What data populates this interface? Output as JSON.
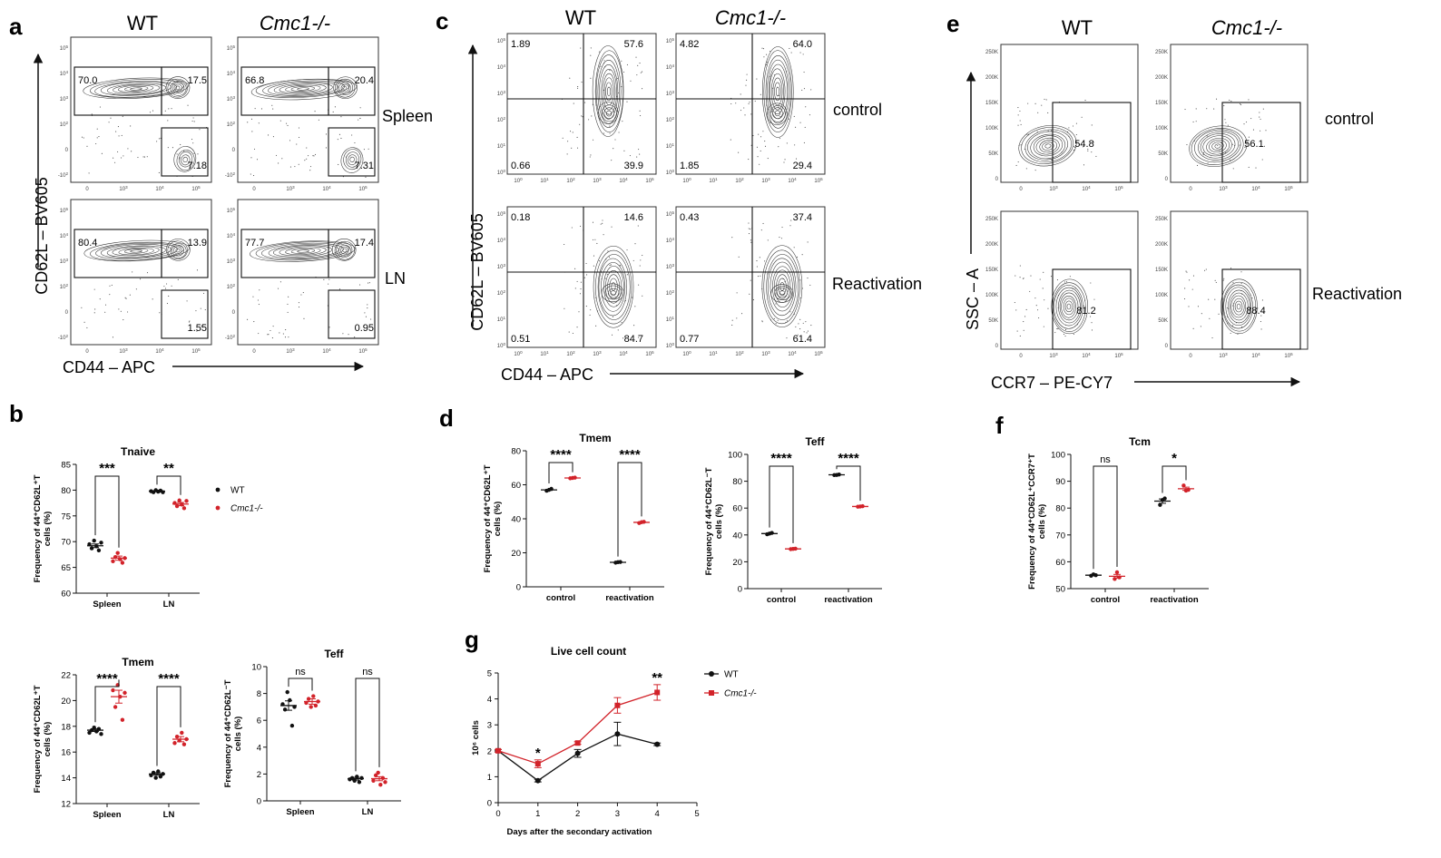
{
  "colors": {
    "wt": "#111111",
    "ko": "#d2232a"
  },
  "panel_labels": [
    "a",
    "b",
    "c",
    "d",
    "e",
    "f",
    "g"
  ],
  "flow_a": {
    "col_titles": [
      "WT",
      "Cmc1-/-"
    ],
    "row_labels": [
      "Spleen",
      "LN"
    ],
    "y_axis": "CD62L – BV605",
    "x_axis": "CD44 – APC",
    "plots": [
      {
        "name": "wt-spleen",
        "gates": [
          "70.0",
          "17.5",
          "7.18"
        ]
      },
      {
        "name": "ko-spleen",
        "gates": [
          "66.8",
          "20.4",
          "7.31"
        ]
      },
      {
        "name": "wt-ln",
        "gates": [
          "80.4",
          "13.9",
          "1.55"
        ]
      },
      {
        "name": "ko-ln",
        "gates": [
          "77.7",
          "17.4",
          "0.95"
        ]
      }
    ]
  },
  "flow_c": {
    "col_titles": [
      "WT",
      "Cmc1-/-"
    ],
    "row_labels": [
      "control",
      "Reactivation"
    ],
    "y_axis": "CD62L – BV605",
    "x_axis": "CD44 – APC",
    "plots": [
      {
        "name": "wt-control",
        "quads": [
          "1.89",
          "57.6",
          "0.66",
          "39.9"
        ]
      },
      {
        "name": "ko-control",
        "quads": [
          "4.82",
          "64.0",
          "1.85",
          "29.4"
        ]
      },
      {
        "name": "wt-reactivation",
        "quads": [
          "0.18",
          "14.6",
          "0.51",
          "84.7"
        ]
      },
      {
        "name": "ko-reactivation",
        "quads": [
          "0.43",
          "37.4",
          "0.77",
          "61.4"
        ]
      }
    ]
  },
  "flow_e": {
    "col_titles": [
      "WT",
      "Cmc1-/-"
    ],
    "row_labels": [
      "control",
      "Reactivation"
    ],
    "y_axis": "SSC – A",
    "x_axis": "CCR7 – PE-CY7",
    "y_ticks": [
      "250K",
      "200K",
      "150K",
      "100K",
      "50K",
      "0"
    ],
    "plots": [
      {
        "name": "wt-control",
        "gate": "54.8"
      },
      {
        "name": "ko-control",
        "gate": "56.1"
      },
      {
        "name": "wt-reactivation",
        "gate": "81.2"
      },
      {
        "name": "ko-reactivation",
        "gate": "88.4"
      }
    ]
  },
  "log_ticks": [
    "10^5",
    "10^4",
    "10^3",
    "10^2",
    "0",
    "-10^2"
  ],
  "c_ticks": [
    "10^5",
    "10^4",
    "10^3",
    "10^2",
    "10^1",
    "10^0"
  ],
  "chart_data": [
    {
      "id": "b-tnaive",
      "type": "scatter",
      "title": "Tnaive",
      "ylabel": "Frequency of 44⁺CD62L⁺T cells (%)",
      "categories": [
        "Spleen",
        "LN"
      ],
      "ylim": [
        60,
        85
      ],
      "yticks": [
        60,
        65,
        70,
        75,
        80,
        85
      ],
      "series": [
        {
          "name": "WT",
          "values": [
            [
              69.5,
              68.7,
              70.2,
              69.1,
              68.3,
              69.8
            ],
            [
              79.8,
              79.6,
              80.0,
              79.7,
              79.9,
              79.6
            ]
          ],
          "mean": [
            69.2,
            79.8
          ],
          "sem": [
            0.35,
            0.1
          ]
        },
        {
          "name": "Cmc1-/-",
          "values": [
            [
              66.2,
              67.0,
              67.8,
              66.6,
              65.9,
              66.8
            ],
            [
              77.5,
              76.9,
              78.0,
              77.2,
              76.5,
              77.9
            ]
          ],
          "mean": [
            66.8,
            77.3
          ],
          "sem": [
            0.4,
            0.3
          ]
        }
      ],
      "sig": [
        "***",
        "**"
      ],
      "legend": [
        "WT",
        "Cmc1-/-"
      ]
    },
    {
      "id": "b-tmem",
      "type": "scatter",
      "title": "Tmem",
      "ylabel": "Frequency of 44⁺CD62L⁺T cells (%)",
      "categories": [
        "Spleen",
        "LN"
      ],
      "ylim": [
        12,
        22
      ],
      "yticks": [
        12,
        14,
        16,
        18,
        20,
        22
      ],
      "series": [
        {
          "name": "WT",
          "values": [
            [
              17.5,
              17.7,
              17.9,
              17.6,
              17.8,
              17.4
            ],
            [
              14.2,
              14.4,
              14.0,
              14.5,
              14.1,
              14.3
            ]
          ],
          "mean": [
            17.7,
            14.3
          ],
          "sem": [
            0.1,
            0.1
          ]
        },
        {
          "name": "Cmc1-/-",
          "values": [
            [
              20.8,
              19.5,
              21.2,
              20.3,
              18.5,
              20.6
            ],
            [
              16.7,
              17.2,
              16.9,
              17.5,
              16.6,
              17.0
            ]
          ],
          "mean": [
            20.3,
            17.0
          ],
          "sem": [
            0.5,
            0.2
          ]
        }
      ],
      "sig": [
        "****",
        "****"
      ]
    },
    {
      "id": "b-teff",
      "type": "scatter",
      "title": "Teff",
      "ylabel": "Frequency of 44⁺CD62L⁻T cells (%)",
      "categories": [
        "Spleen",
        "LN"
      ],
      "ylim": [
        0,
        10
      ],
      "yticks": [
        0,
        2,
        4,
        6,
        8,
        10
      ],
      "series": [
        {
          "name": "WT",
          "values": [
            [
              7.2,
              6.8,
              8.1,
              7.5,
              5.6,
              7.0
            ],
            [
              1.6,
              1.7,
              1.5,
              1.8,
              1.4,
              1.7
            ]
          ],
          "mean": [
            7.1,
            1.65
          ],
          "sem": [
            0.35,
            0.1
          ]
        },
        {
          "name": "Cmc1-/-",
          "values": [
            [
              7.3,
              7.6,
              7.0,
              7.8,
              7.1,
              7.4
            ],
            [
              1.5,
              1.9,
              2.1,
              1.2,
              1.7,
              1.4
            ]
          ],
          "mean": [
            7.4,
            1.65
          ],
          "sem": [
            0.2,
            0.15
          ]
        }
      ],
      "sig": [
        "ns",
        "ns"
      ]
    },
    {
      "id": "d-tmem",
      "type": "scatter",
      "title": "Tmem",
      "ylabel": "Frequency of 44⁺CD62L⁺T cells (%)",
      "categories": [
        "control",
        "reactivation"
      ],
      "ylim": [
        0,
        80
      ],
      "yticks": [
        0,
        20,
        40,
        60,
        80
      ],
      "series": [
        {
          "name": "WT",
          "values": [
            [
              56.5,
              57.0,
              57.6
            ],
            [
              14.2,
              14.5,
              14.6
            ]
          ],
          "mean": [
            57.0,
            14.4
          ],
          "sem": [
            0.3,
            0.1
          ]
        },
        {
          "name": "Cmc1-/-",
          "values": [
            [
              63.8,
              64.0,
              64.2
            ],
            [
              37.5,
              38.0,
              38.2
            ]
          ],
          "mean": [
            64.0,
            37.9
          ],
          "sem": [
            0.1,
            0.2
          ]
        }
      ],
      "sig": [
        "****",
        "****"
      ]
    },
    {
      "id": "d-teff",
      "type": "scatter",
      "title": "Teff",
      "ylabel": "Frequency of 44⁺CD62L⁻T cells (%)",
      "categories": [
        "control",
        "reactivation"
      ],
      "ylim": [
        0,
        100
      ],
      "yticks": [
        0,
        20,
        40,
        60,
        80,
        100
      ],
      "series": [
        {
          "name": "WT",
          "values": [
            [
              40.5,
              41.0,
              41.5
            ],
            [
              84.6,
              84.7,
              85.0
            ]
          ],
          "mean": [
            41.0,
            84.8
          ],
          "sem": [
            0.3,
            0.1
          ]
        },
        {
          "name": "Cmc1-/-",
          "values": [
            [
              29.4,
              29.6,
              29.8
            ],
            [
              61.0,
              61.2,
              61.4
            ]
          ],
          "mean": [
            29.6,
            61.2
          ],
          "sem": [
            0.1,
            0.1
          ]
        }
      ],
      "sig": [
        "****",
        "****"
      ]
    },
    {
      "id": "f-tcm",
      "type": "scatter",
      "title": "Tcm",
      "ylabel": "Frequency of 44⁺CD62L⁺CCR7⁺T cells (%)",
      "categories": [
        "control",
        "reactivation"
      ],
      "ylim": [
        50,
        100
      ],
      "yticks": [
        50,
        60,
        70,
        80,
        90,
        100
      ],
      "series": [
        {
          "name": "WT",
          "values": [
            [
              54.8,
              55.3,
              55.0
            ],
            [
              81.2,
              83.0,
              83.6
            ]
          ],
          "mean": [
            55.0,
            82.6
          ],
          "sem": [
            0.2,
            0.8
          ]
        },
        {
          "name": "Cmc1-/-",
          "values": [
            [
              53.6,
              56.1,
              54.2
            ],
            [
              88.4,
              86.5,
              86.8
            ]
          ],
          "mean": [
            54.6,
            87.2
          ],
          "sem": [
            0.7,
            0.6
          ]
        }
      ],
      "sig": [
        "ns",
        "*"
      ]
    },
    {
      "id": "g-live",
      "type": "line",
      "title": "Live cell count",
      "xlabel": "Days after the secondary activation",
      "ylabel": "10⁶ cells",
      "xlim": [
        0,
        5
      ],
      "ylim": [
        0,
        5
      ],
      "xticks": [
        0,
        1,
        2,
        3,
        4,
        5
      ],
      "yticks": [
        0,
        1,
        2,
        3,
        4,
        5
      ],
      "series": [
        {
          "name": "WT",
          "x": [
            0,
            1,
            2,
            3,
            4
          ],
          "y": [
            2.0,
            0.85,
            1.9,
            2.65,
            2.25
          ],
          "err": [
            0.05,
            0.05,
            0.15,
            0.45,
            0.05
          ]
        },
        {
          "name": "Cmc1-/-",
          "x": [
            0,
            1,
            2,
            3,
            4
          ],
          "y": [
            2.0,
            1.5,
            2.3,
            3.75,
            4.25
          ],
          "err": [
            0.05,
            0.15,
            0.05,
            0.3,
            0.3
          ]
        }
      ],
      "annotations": [
        {
          "x": 1,
          "text": "*"
        },
        {
          "x": 4,
          "text": "**"
        }
      ],
      "legend": [
        "WT",
        "Cmc1-/-"
      ]
    }
  ]
}
